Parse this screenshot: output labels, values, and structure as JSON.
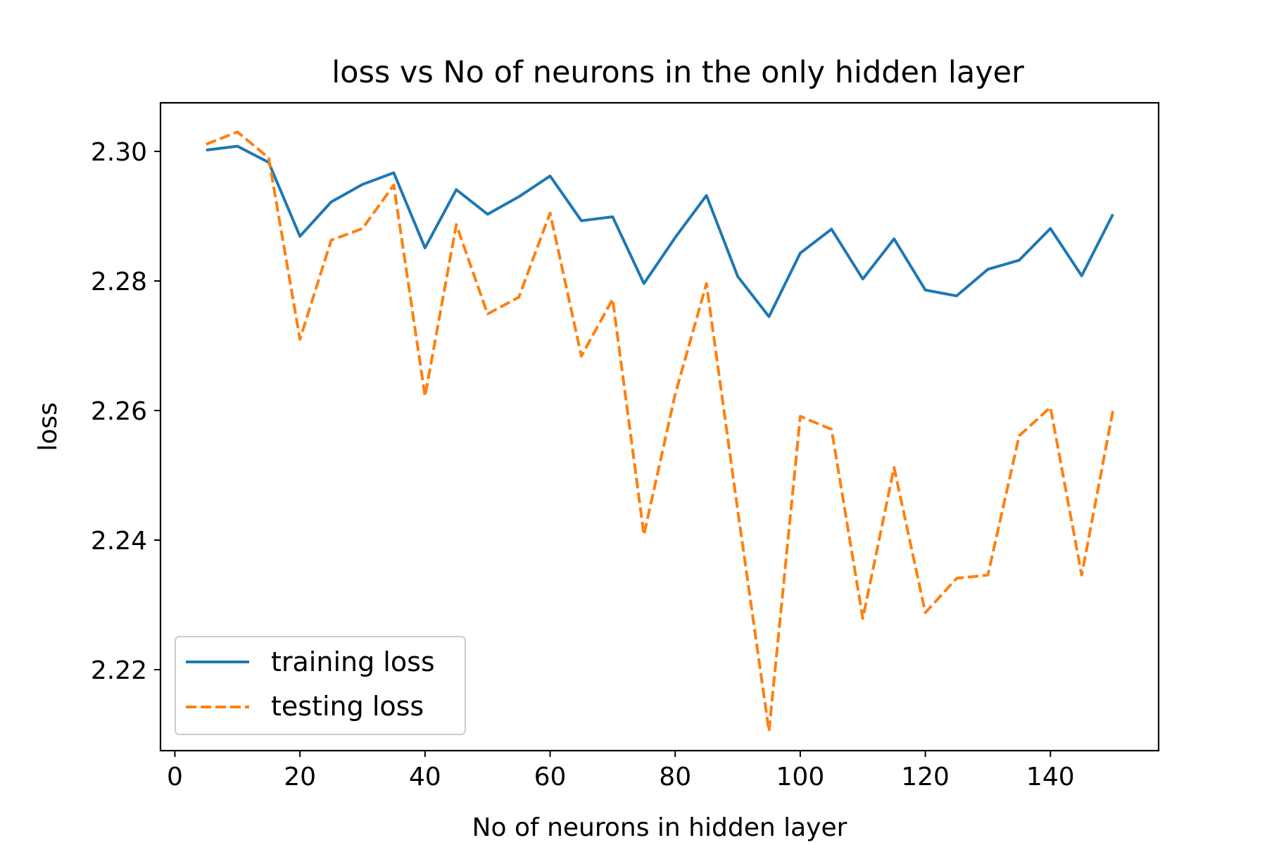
{
  "chart_data": {
    "type": "line",
    "title": "loss vs No of neurons in the only hidden layer",
    "xlabel": "No of neurons in hidden layer",
    "ylabel": "loss",
    "xlim": [
      -2.3,
      157.3
    ],
    "ylim": [
      2.2075,
      2.3075
    ],
    "xticks": [
      0,
      20,
      40,
      60,
      80,
      100,
      120,
      140
    ],
    "yticks": [
      2.22,
      2.24,
      2.26,
      2.28,
      2.3
    ],
    "ytick_labels": [
      "2.22",
      "2.24",
      "2.26",
      "2.28",
      "2.30"
    ],
    "x": [
      5,
      10,
      15,
      20,
      25,
      30,
      35,
      40,
      45,
      50,
      55,
      60,
      65,
      70,
      75,
      80,
      85,
      90,
      95,
      100,
      105,
      110,
      115,
      120,
      125,
      130,
      135,
      140,
      145,
      150
    ],
    "series": [
      {
        "name": "training loss",
        "color": "#1f77b4",
        "style": "solid",
        "values": [
          2.3002,
          2.3008,
          2.2983,
          2.2869,
          2.2922,
          2.2949,
          2.2967,
          2.2851,
          2.2941,
          2.2903,
          2.293,
          2.2962,
          2.2893,
          2.2899,
          2.2796,
          2.2867,
          2.2932,
          2.2807,
          2.2745,
          2.2843,
          2.288,
          2.2803,
          2.2865,
          2.2786,
          2.2777,
          2.2818,
          2.2832,
          2.2881,
          2.2808,
          2.2903
        ]
      },
      {
        "name": "testing loss",
        "color": "#ff7f0e",
        "style": "dashed",
        "values": [
          2.3011,
          2.303,
          2.299,
          2.271,
          2.2863,
          2.2881,
          2.2948,
          2.2622,
          2.2887,
          2.2749,
          2.2775,
          2.2905,
          2.2684,
          2.2772,
          2.2408,
          2.2625,
          2.2796,
          2.2446,
          2.2105,
          2.2591,
          2.2571,
          2.2279,
          2.2512,
          2.2288,
          2.2341,
          2.2346,
          2.2561,
          2.2605,
          2.2346,
          2.26
        ]
      }
    ],
    "grid": false,
    "legend_position": "lower-left"
  }
}
